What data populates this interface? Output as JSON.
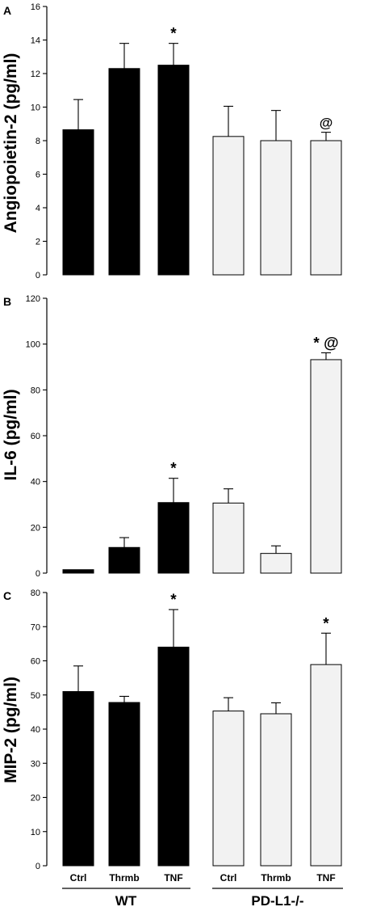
{
  "chart_data": [
    {
      "type": "bar",
      "panel": "A",
      "ylabel": "Angiopoietin-2 (pg/ml)",
      "ylim": [
        0,
        16
      ],
      "yticks": [
        0,
        2,
        4,
        6,
        8,
        10,
        12,
        14,
        16
      ],
      "categories": [
        "Ctrl",
        "Thrmb",
        "TNF",
        "Ctrl",
        "Thrmb",
        "TNF"
      ],
      "groups": [
        "WT",
        "WT",
        "WT",
        "PD-L1-/-",
        "PD-L1-/-",
        "PD-L1-/-"
      ],
      "values": [
        8.65,
        12.3,
        12.5,
        8.25,
        8.0,
        8.0
      ],
      "errors": [
        1.8,
        1.5,
        1.3,
        1.8,
        1.8,
        0.5
      ],
      "annotations": [
        "",
        "",
        "*",
        "",
        "",
        "@"
      ],
      "colors": [
        "#000000",
        "#000000",
        "#000000",
        "#f2f2f2",
        "#f2f2f2",
        "#f2f2f2"
      ]
    },
    {
      "type": "bar",
      "panel": "B",
      "ylabel": "IL-6 (pg/ml)",
      "ylim": [
        0,
        120
      ],
      "yticks": [
        0,
        20,
        40,
        60,
        80,
        100,
        120
      ],
      "categories": [
        "Ctrl",
        "Thrmb",
        "TNF",
        "Ctrl",
        "Thrmb",
        "TNF"
      ],
      "groups": [
        "WT",
        "WT",
        "WT",
        "PD-L1-/-",
        "PD-L1-/-",
        "PD-L1-/-"
      ],
      "values": [
        1.5,
        11.2,
        30.8,
        30.6,
        8.6,
        93.2
      ],
      "errors": [
        0,
        4.3,
        10.6,
        6.2,
        3.3,
        3.0
      ],
      "annotations": [
        "",
        "",
        "*",
        "",
        "",
        "* @"
      ],
      "colors": [
        "#000000",
        "#000000",
        "#000000",
        "#f2f2f2",
        "#f2f2f2",
        "#f2f2f2"
      ]
    },
    {
      "type": "bar",
      "panel": "C",
      "ylabel": "MIP-2 (pg/ml)",
      "ylim": [
        0,
        80
      ],
      "yticks": [
        0,
        10,
        20,
        30,
        40,
        50,
        60,
        70,
        80
      ],
      "categories": [
        "Ctrl",
        "Thrmb",
        "TNF",
        "Ctrl",
        "Thrmb",
        "TNF"
      ],
      "groups": [
        "WT",
        "WT",
        "WT",
        "PD-L1-/-",
        "PD-L1-/-",
        "PD-L1-/-"
      ],
      "values": [
        51.0,
        47.8,
        64.0,
        45.3,
        44.5,
        58.9
      ],
      "errors": [
        7.5,
        1.8,
        11.0,
        3.9,
        3.2,
        9.2
      ],
      "annotations": [
        "",
        "",
        "*",
        "",
        "",
        "*"
      ],
      "colors": [
        "#000000",
        "#000000",
        "#000000",
        "#f2f2f2",
        "#f2f2f2",
        "#f2f2f2"
      ]
    }
  ],
  "x_axis": {
    "categories": [
      "Ctrl",
      "Thrmb",
      "TNF",
      "Ctrl",
      "Thrmb",
      "TNF"
    ],
    "group_labels": [
      "WT",
      "PD-L1-/-"
    ]
  }
}
